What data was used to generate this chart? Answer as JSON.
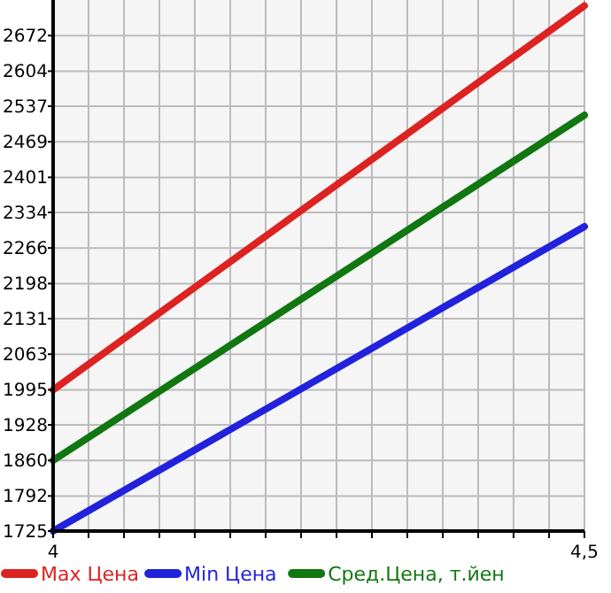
{
  "chart_data": {
    "type": "line",
    "x": [
      4,
      4.5
    ],
    "series": [
      {
        "name": "Max Цена",
        "color": "#dd2222",
        "values": [
          1995,
          2729
        ]
      },
      {
        "name": "Min Цена",
        "color": "#2222dd",
        "values": [
          1725,
          2307
        ]
      },
      {
        "name": "Сред.Цена, т.йен",
        "color": "#117711",
        "values": [
          1860,
          2520
        ]
      }
    ],
    "xlim": [
      4,
      4.5
    ],
    "xticks": [
      4,
      {
        "value": 4.0333,
        "label": null
      },
      {
        "value": 4.0667,
        "label": null
      },
      {
        "value": 4.1,
        "label": null
      },
      {
        "value": 4.1333,
        "label": null
      },
      {
        "value": 4.1667,
        "label": null
      },
      {
        "value": 4.2,
        "label": null
      },
      {
        "value": 4.2333,
        "label": null
      },
      {
        "value": 4.2667,
        "label": null
      },
      {
        "value": 4.3,
        "label": null
      },
      {
        "value": 4.3333,
        "label": null
      },
      {
        "value": 4.3667,
        "label": null
      },
      {
        "value": 4.4,
        "label": null
      },
      {
        "value": 4.4333,
        "label": null
      },
      {
        "value": 4.4667,
        "label": null
      },
      {
        "value": 4.5,
        "label": "4,5"
      }
    ],
    "ylim": [
      1725,
      2740
    ],
    "yticks": [
      1725,
      1792,
      1860,
      1928,
      1995,
      2063,
      2131,
      2198,
      2266,
      2334,
      2401,
      2469,
      2537,
      2604,
      2672
    ],
    "grid": true,
    "legend": "bottom",
    "marker": "none",
    "line_style": "solid"
  }
}
